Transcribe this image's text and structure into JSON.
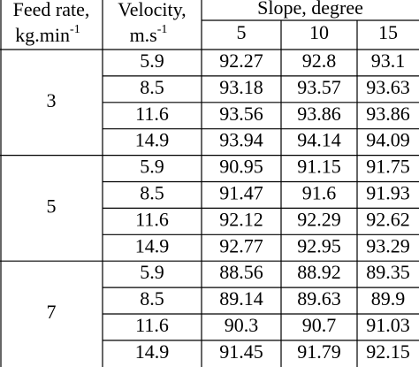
{
  "header": {
    "feed_rate": {
      "line1": "Feed rate,",
      "line2": "kg.min",
      "sup": "-1"
    },
    "velocity": {
      "line1": "Velocity,",
      "line2": "m.s",
      "sup": "-1"
    },
    "slope": "Slope, degree",
    "slopes": [
      5,
      10,
      15
    ]
  },
  "groups": [
    {
      "feed": 3,
      "rows": [
        {
          "velocity": 5.9,
          "values": [
            92.27,
            92.8,
            93.1
          ]
        },
        {
          "velocity": 8.5,
          "values": [
            93.18,
            93.57,
            93.63
          ]
        },
        {
          "velocity": 11.6,
          "values": [
            93.56,
            93.86,
            93.86
          ]
        },
        {
          "velocity": 14.9,
          "values": [
            93.94,
            94.14,
            94.09
          ]
        }
      ]
    },
    {
      "feed": 5,
      "rows": [
        {
          "velocity": 5.9,
          "values": [
            90.95,
            91.15,
            91.75
          ]
        },
        {
          "velocity": 8.5,
          "values": [
            91.47,
            91.6,
            91.93
          ]
        },
        {
          "velocity": 11.6,
          "values": [
            92.12,
            92.29,
            92.62
          ]
        },
        {
          "velocity": 14.9,
          "values": [
            92.77,
            92.95,
            93.29
          ]
        }
      ]
    },
    {
      "feed": 7,
      "rows": [
        {
          "velocity": 5.9,
          "values": [
            88.56,
            88.92,
            89.35
          ]
        },
        {
          "velocity": 8.5,
          "values": [
            89.14,
            89.63,
            89.9
          ]
        },
        {
          "velocity": 11.6,
          "values": [
            90.3,
            90.7,
            91.03
          ]
        },
        {
          "velocity": 14.9,
          "values": [
            91.45,
            91.79,
            92.15
          ]
        }
      ]
    }
  ]
}
